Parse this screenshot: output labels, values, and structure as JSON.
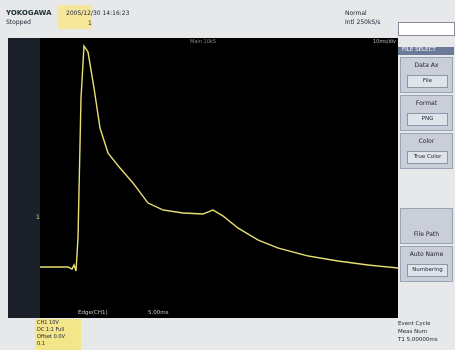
{
  "header": {
    "brand": "YOKOGAWA",
    "status": "Stopped",
    "timestamp": "2005/12/30 14:16:23",
    "trigger": "1",
    "mode": "Normal",
    "sample_rate": "Intl 250kS/s"
  },
  "screen": {
    "top_label": "Main 10kS",
    "right_label": "10ms/div",
    "ch_marker": "1",
    "bottom_label": "Edge(CH1)",
    "time_value": "5.00ms"
  },
  "menu": {
    "title": "FILE SELECT",
    "items": [
      {
        "label": "Data Ax",
        "value": "File"
      },
      {
        "label": "Format",
        "value": "PNG"
      },
      {
        "label": "Color",
        "value": "True Color"
      },
      {
        "label": "File Path",
        "value": ""
      },
      {
        "label": "Auto Name",
        "value": "Numbering"
      }
    ]
  },
  "footer": {
    "channel_lines": [
      "CH1 10V",
      "DC 1:1 Full",
      "Offset 0.0V",
      "0.1"
    ],
    "right_lines": [
      "Event Cycle",
      "Meas Num",
      "T1 5.00000ms"
    ]
  }
}
